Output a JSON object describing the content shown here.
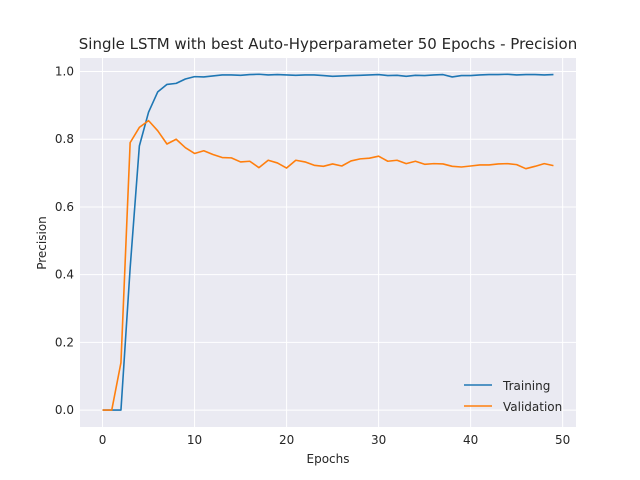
{
  "chart_data": {
    "type": "line",
    "title": "Single LSTM with best Auto-Hyperparameter 50 Epochs - Precision",
    "xlabel": "Epochs",
    "ylabel": "Precision",
    "xlim": [
      -2.45,
      51.45
    ],
    "ylim": [
      -0.05,
      1.04
    ],
    "xticks": [
      0,
      10,
      20,
      30,
      40,
      50
    ],
    "yticks": [
      0.0,
      0.2,
      0.4,
      0.6,
      0.8,
      1.0
    ],
    "xtick_labels": [
      "0",
      "10",
      "20",
      "30",
      "40",
      "50"
    ],
    "ytick_labels": [
      "0.0",
      "0.2",
      "0.4",
      "0.6",
      "0.8",
      "1.0"
    ],
    "grid": true,
    "legend_position": "lower-right",
    "x": [
      0,
      1,
      2,
      3,
      4,
      5,
      6,
      7,
      8,
      9,
      10,
      11,
      12,
      13,
      14,
      15,
      16,
      17,
      18,
      19,
      20,
      21,
      22,
      23,
      24,
      25,
      26,
      27,
      28,
      29,
      30,
      31,
      32,
      33,
      34,
      35,
      36,
      37,
      38,
      39,
      40,
      41,
      42,
      43,
      44,
      45,
      46,
      47,
      48,
      49
    ],
    "series": [
      {
        "name": "Training",
        "color": "#1f77b4",
        "values": [
          0.0,
          0.0,
          0.0,
          0.42,
          0.78,
          0.88,
          0.94,
          0.962,
          0.965,
          0.978,
          0.985,
          0.984,
          0.987,
          0.99,
          0.99,
          0.989,
          0.991,
          0.992,
          0.99,
          0.991,
          0.99,
          0.989,
          0.99,
          0.99,
          0.988,
          0.986,
          0.987,
          0.988,
          0.989,
          0.99,
          0.991,
          0.988,
          0.989,
          0.986,
          0.989,
          0.988,
          0.99,
          0.991,
          0.984,
          0.988,
          0.988,
          0.99,
          0.991,
          0.991,
          0.992,
          0.99,
          0.991,
          0.991,
          0.99,
          0.991
        ]
      },
      {
        "name": "Validation",
        "color": "#ff7f0e",
        "values": [
          0.0,
          0.0,
          0.14,
          0.79,
          0.835,
          0.855,
          0.825,
          0.786,
          0.8,
          0.775,
          0.758,
          0.766,
          0.755,
          0.746,
          0.745,
          0.733,
          0.735,
          0.716,
          0.738,
          0.73,
          0.715,
          0.738,
          0.733,
          0.723,
          0.72,
          0.727,
          0.721,
          0.736,
          0.742,
          0.744,
          0.75,
          0.735,
          0.738,
          0.728,
          0.735,
          0.726,
          0.728,
          0.727,
          0.72,
          0.718,
          0.721,
          0.724,
          0.724,
          0.727,
          0.728,
          0.725,
          0.713,
          0.72,
          0.728,
          0.722
        ]
      }
    ]
  }
}
